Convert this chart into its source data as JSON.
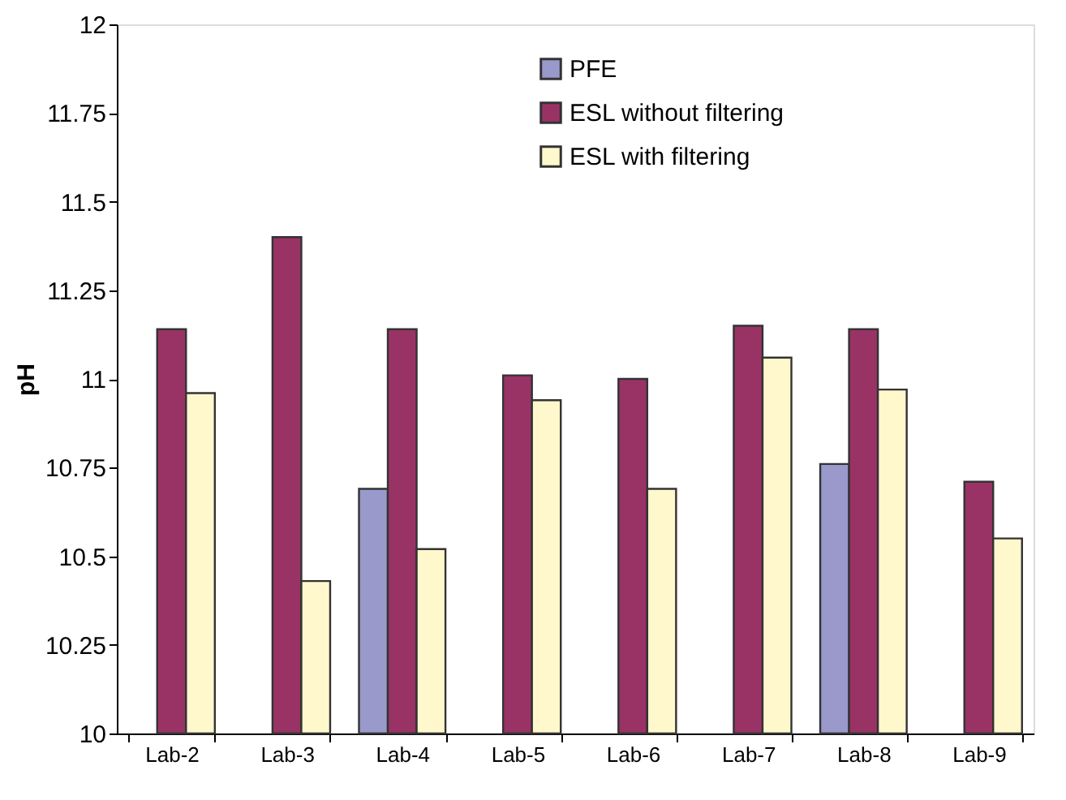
{
  "chart_data": {
    "type": "bar",
    "ylabel": "pH",
    "categories": [
      "Lab-2",
      "Lab-3",
      "Lab-4",
      "Lab-5",
      "Lab-6",
      "Lab-7",
      "Lab-8",
      "Lab-9"
    ],
    "series": [
      {
        "name": "PFE",
        "color": "#9999cc",
        "values": [
          null,
          null,
          10.69,
          null,
          null,
          null,
          10.76,
          null
        ]
      },
      {
        "name": "ESL without filtering",
        "color": "#993366",
        "values": [
          11.14,
          11.4,
          11.14,
          11.01,
          11.0,
          11.15,
          11.14,
          10.71
        ]
      },
      {
        "name": "ESL with filtering",
        "color": "#fff8cc",
        "values": [
          10.96,
          10.43,
          10.52,
          10.94,
          10.69,
          11.06,
          10.97,
          10.55
        ]
      }
    ],
    "ylim": [
      10,
      12
    ],
    "yticks": [
      10,
      10.25,
      10.5,
      10.75,
      11,
      11.25,
      11.5,
      11.75,
      12
    ],
    "grid": false,
    "legend": "top"
  }
}
